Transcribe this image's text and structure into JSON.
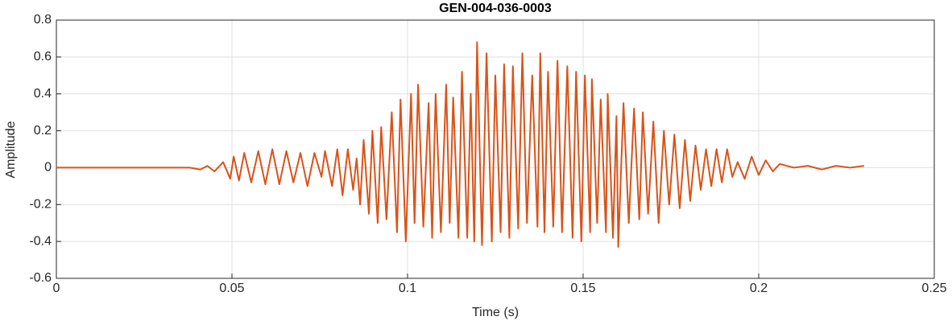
{
  "chart_data": {
    "type": "line",
    "title": "GEN-004-036-0003",
    "x_label": "Time (s)",
    "y_label": "Amplitude",
    "xlim": [
      0,
      0.25
    ],
    "xticks": [
      0,
      0.05,
      0.1,
      0.15,
      0.2,
      0.25
    ],
    "ylim": [
      -0.6,
      0.8
    ],
    "yticks": [
      -0.6,
      -0.4,
      -0.2,
      0,
      0.2,
      0.4,
      0.6,
      0.8
    ],
    "grid": true,
    "series": [
      {
        "name": "GEN-004-036-0003",
        "color": "#d95319",
        "x": [
          0,
          0.02,
          0.038,
          0.041,
          0.043,
          0.045,
          0.0475,
          0.0495,
          0.0505,
          0.052,
          0.0535,
          0.0555,
          0.0575,
          0.0595,
          0.0615,
          0.0635,
          0.0655,
          0.0675,
          0.0695,
          0.0715,
          0.0735,
          0.0755,
          0.0765,
          0.0785,
          0.08,
          0.0815,
          0.083,
          0.0845,
          0.0855,
          0.0865,
          0.0875,
          0.089,
          0.09,
          0.0915,
          0.0925,
          0.094,
          0.0955,
          0.097,
          0.098,
          0.0995,
          0.101,
          0.102,
          0.103,
          0.1045,
          0.106,
          0.107,
          0.108,
          0.1095,
          0.111,
          0.112,
          0.113,
          0.1145,
          0.1155,
          0.117,
          0.118,
          0.119,
          0.1198,
          0.1212,
          0.1225,
          0.124,
          0.125,
          0.1265,
          0.1275,
          0.129,
          0.13,
          0.1315,
          0.1327,
          0.134,
          0.1355,
          0.137,
          0.1378,
          0.139,
          0.14,
          0.1415,
          0.1427,
          0.144,
          0.1455,
          0.147,
          0.148,
          0.1495,
          0.1505,
          0.152,
          0.1525,
          0.154,
          0.155,
          0.1565,
          0.157,
          0.1585,
          0.1595,
          0.16,
          0.1615,
          0.163,
          0.1645,
          0.166,
          0.167,
          0.1685,
          0.17,
          0.1715,
          0.173,
          0.1745,
          0.176,
          0.1775,
          0.179,
          0.1805,
          0.182,
          0.1835,
          0.185,
          0.1865,
          0.188,
          0.1895,
          0.191,
          0.1925,
          0.194,
          0.196,
          0.198,
          0.2,
          0.202,
          0.204,
          0.206,
          0.21,
          0.214,
          0.218,
          0.222,
          0.226,
          0.23
        ],
        "values": [
          0,
          0,
          0,
          -0.01,
          0.01,
          -0.02,
          0.03,
          -0.06,
          0.06,
          -0.07,
          0.08,
          -0.08,
          0.09,
          -0.09,
          0.1,
          -0.09,
          0.09,
          -0.08,
          0.08,
          -0.1,
          0.08,
          -0.05,
          0.09,
          -0.1,
          0.1,
          -0.15,
          0.1,
          -0.12,
          0.05,
          -0.2,
          0.15,
          -0.25,
          0.2,
          -0.3,
          0.22,
          -0.28,
          0.3,
          -0.35,
          0.37,
          -0.4,
          0.4,
          -0.3,
          0.45,
          -0.32,
          0.35,
          -0.38,
          0.4,
          -0.35,
          0.45,
          -0.3,
          0.38,
          -0.38,
          0.52,
          -0.38,
          0.4,
          -0.4,
          0.68,
          -0.42,
          0.62,
          -0.4,
          0.5,
          -0.35,
          0.56,
          -0.38,
          0.55,
          -0.33,
          0.62,
          -0.3,
          0.5,
          -0.32,
          0.62,
          -0.35,
          0.52,
          -0.32,
          0.58,
          -0.35,
          0.55,
          -0.38,
          0.52,
          -0.4,
          0.5,
          -0.35,
          0.48,
          -0.3,
          0.37,
          -0.35,
          0.4,
          -0.38,
          0.28,
          -0.43,
          0.35,
          -0.3,
          0.32,
          -0.28,
          0.3,
          -0.25,
          0.25,
          -0.3,
          0.2,
          -0.2,
          0.18,
          -0.22,
          0.15,
          -0.18,
          0.12,
          -0.12,
          0.1,
          -0.1,
          0.1,
          -0.08,
          0.1,
          -0.05,
          0.03,
          -0.06,
          0.06,
          -0.04,
          0.04,
          -0.02,
          0.02,
          0,
          0.01,
          -0.01,
          0.01,
          0,
          0.01
        ]
      }
    ]
  }
}
